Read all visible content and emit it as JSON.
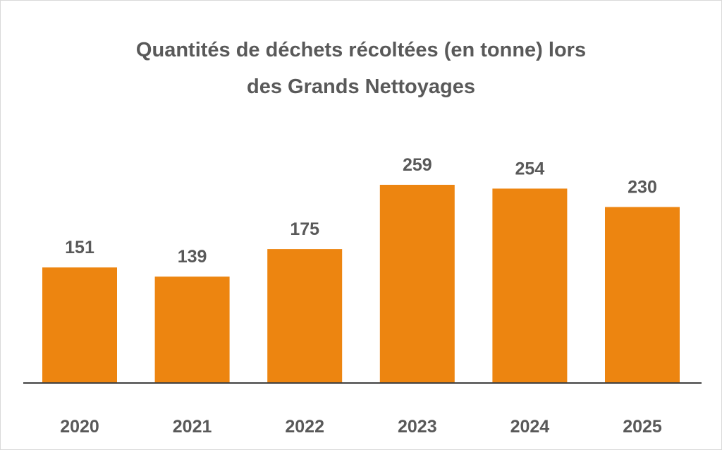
{
  "chart_data": {
    "type": "bar",
    "title_lines": [
      "Quantités de déchets récoltées (en tonne) lors",
      "des Grands Nettoyages"
    ],
    "xlabel": "",
    "ylabel": "",
    "categories": [
      "2020",
      "2021",
      "2022",
      "2023",
      "2024",
      "2025"
    ],
    "values": [
      151,
      139,
      175,
      259,
      254,
      230
    ],
    "data_labels": [
      "151",
      "139",
      "175",
      "259",
      "254",
      "230"
    ],
    "ylim": [
      0,
      300
    ],
    "grid": false,
    "legend": "none",
    "bar_color": "#ED8510",
    "axis_color": "#404040",
    "text_color": "#595959"
  }
}
